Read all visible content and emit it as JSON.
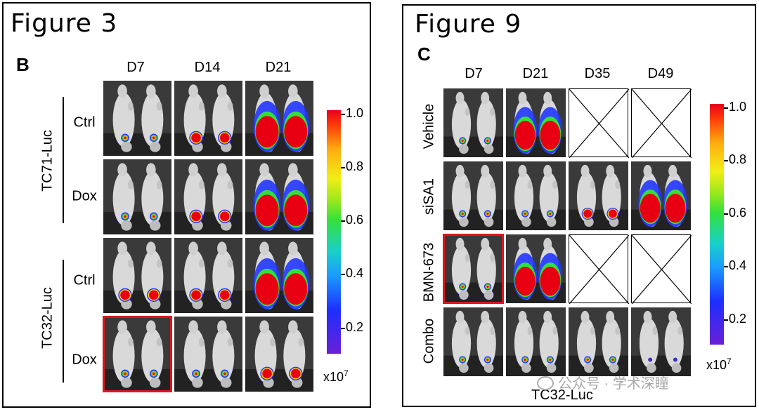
{
  "fig3": {
    "title": "Figure 3",
    "panel": "B",
    "columns": [
      "D7",
      "D14",
      "D21"
    ],
    "row_groups": [
      {
        "name": "TC71-Luc",
        "rows": [
          "Ctrl",
          "Dox"
        ]
      },
      {
        "name": "TC32-Luc",
        "rows": [
          "Ctrl",
          "Dox"
        ]
      }
    ],
    "colorbar_ticks": [
      "1.0",
      "0.8",
      "0.6",
      "0.4",
      "0.2"
    ],
    "colorbar_unit": "x10",
    "colorbar_exp": "7"
  },
  "fig9": {
    "title": "Figure 9",
    "panel": "C",
    "columns": [
      "D7",
      "D21",
      "D35",
      "D49"
    ],
    "rows": [
      "Vehicle",
      "siSA1",
      "BMN-673",
      "Combo"
    ],
    "colorbar_ticks": [
      "1.0",
      "0.8",
      "0.6",
      "0.4",
      "0.2"
    ],
    "colorbar_unit": "x10",
    "colorbar_exp": "7",
    "footer": "TC32-Luc"
  },
  "watermark": "公众号 · 学术深瞳",
  "colors": {
    "highlight": "#e0141c",
    "border": "#000000"
  }
}
